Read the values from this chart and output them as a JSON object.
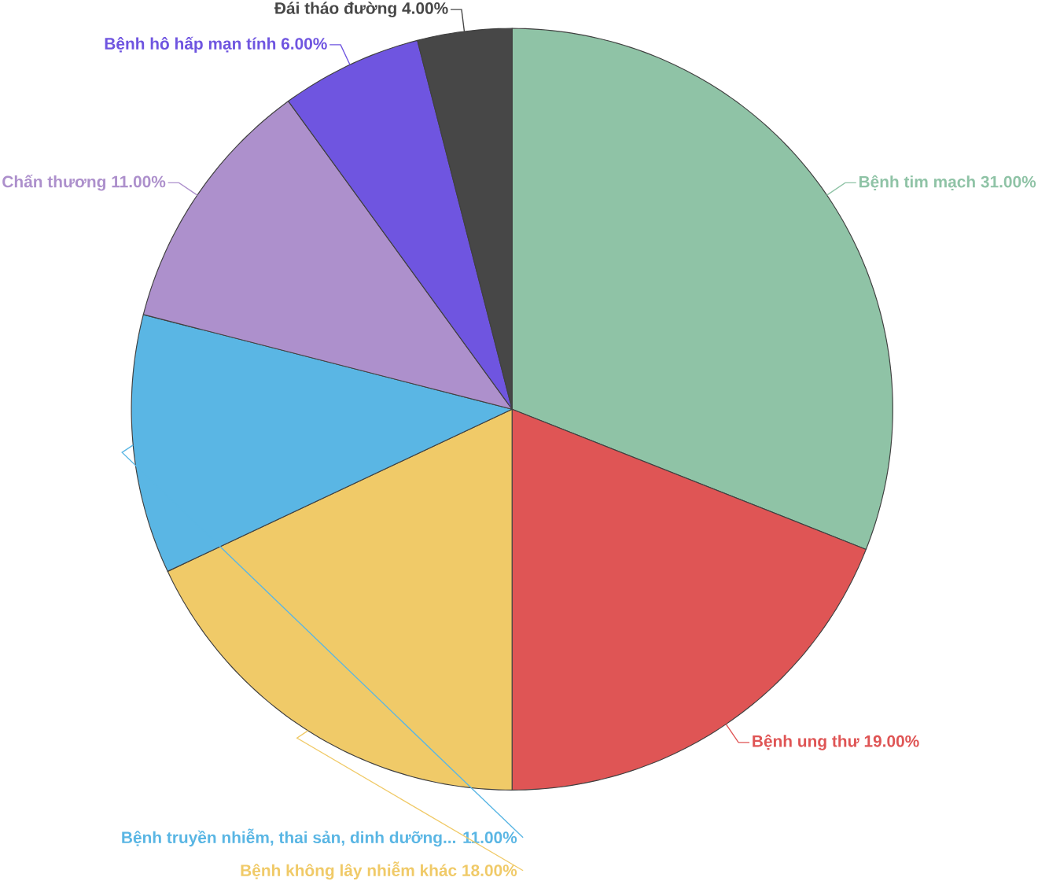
{
  "chart_data": {
    "type": "pie",
    "categories": [
      "Bệnh tim mạch",
      "Bệnh ung thư",
      "Bệnh không lây nhiễm khác",
      "Bệnh truyền nhiễm, thai sản, dinh dưỡng...",
      "Chấn thương",
      "Bệnh hô hấp mạn tính",
      "Đái tháo đường"
    ],
    "values": [
      31,
      19,
      18,
      11,
      11,
      6,
      4
    ],
    "colors": [
      "#8fc3a6",
      "#df5555",
      "#f0ca68",
      "#5ab6e4",
      "#ad90cc",
      "#6f55e0",
      "#474747"
    ],
    "value_labels": [
      "31.00%",
      "19.00%",
      "18.00%",
      "11.00%",
      "11.00%",
      "6.00%",
      "4.00%"
    ]
  }
}
